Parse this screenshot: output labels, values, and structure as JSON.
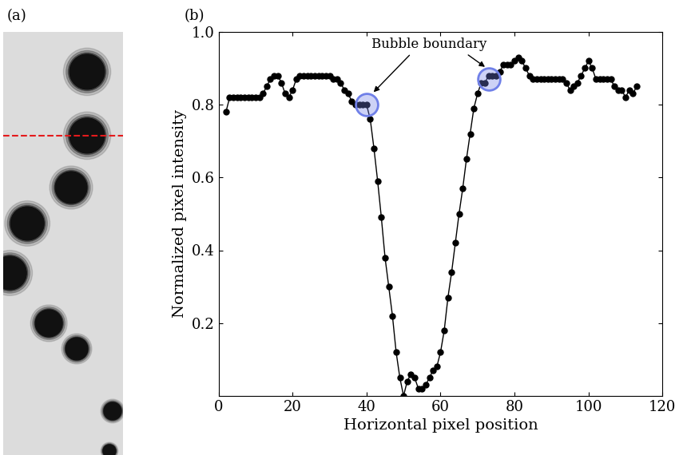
{
  "chart_data": [
    {
      "type": "image",
      "panel_label": "(a)",
      "line_color": "#e41a1c",
      "line_style": "dashed"
    },
    {
      "type": "line",
      "panel_label": "(b)",
      "x_label": "Horizontal pixel position",
      "y_label": "Normalized pixel intensity",
      "x": [
        2,
        3,
        4,
        5,
        6,
        7,
        8,
        9,
        10,
        11,
        12,
        13,
        14,
        15,
        16,
        17,
        18,
        19,
        20,
        21,
        22,
        23,
        24,
        25,
        26,
        27,
        28,
        29,
        30,
        31,
        32,
        33,
        34,
        35,
        36,
        37,
        38,
        39,
        40,
        41,
        42,
        43,
        44,
        45,
        46,
        47,
        48,
        49,
        50,
        51,
        52,
        53,
        54,
        55,
        56,
        57,
        58,
        59,
        60,
        61,
        62,
        63,
        64,
        65,
        66,
        67,
        68,
        69,
        70,
        71,
        72,
        73,
        74,
        75,
        76,
        77,
        78,
        79,
        80,
        81,
        82,
        83,
        84,
        85,
        86,
        87,
        88,
        89,
        90,
        91,
        92,
        93,
        94,
        95,
        96,
        97,
        98,
        99,
        100,
        101,
        102,
        103,
        104,
        105,
        106,
        107,
        108,
        109,
        110,
        111,
        112,
        113
      ],
      "values": [
        0.78,
        0.82,
        0.82,
        0.82,
        0.82,
        0.82,
        0.82,
        0.82,
        0.82,
        0.82,
        0.83,
        0.85,
        0.87,
        0.88,
        0.88,
        0.86,
        0.83,
        0.82,
        0.84,
        0.87,
        0.88,
        0.88,
        0.88,
        0.88,
        0.88,
        0.88,
        0.88,
        0.88,
        0.88,
        0.87,
        0.87,
        0.86,
        0.84,
        0.83,
        0.81,
        0.8,
        0.8,
        0.8,
        0.8,
        0.76,
        0.68,
        0.59,
        0.49,
        0.38,
        0.3,
        0.22,
        0.12,
        0.05,
        0.0,
        0.04,
        0.06,
        0.05,
        0.02,
        0.02,
        0.03,
        0.05,
        0.07,
        0.08,
        0.12,
        0.18,
        0.27,
        0.34,
        0.42,
        0.5,
        0.57,
        0.65,
        0.72,
        0.79,
        0.83,
        0.86,
        0.86,
        0.88,
        0.88,
        0.88,
        0.89,
        0.91,
        0.91,
        0.91,
        0.92,
        0.93,
        0.92,
        0.9,
        0.88,
        0.87,
        0.87,
        0.87,
        0.87,
        0.87,
        0.87,
        0.87,
        0.87,
        0.87,
        0.86,
        0.84,
        0.85,
        0.86,
        0.88,
        0.9,
        0.92,
        0.9,
        0.87,
        0.87,
        0.87,
        0.87,
        0.87,
        0.85,
        0.84,
        0.84,
        0.82,
        0.84,
        0.83,
        0.85
      ],
      "color": "#000000",
      "marker": "o",
      "line_style": "solid",
      "xlim": [
        0,
        120
      ],
      "xticks": [
        0,
        20,
        40,
        60,
        80,
        100,
        120
      ],
      "ylim": [
        0,
        1.0
      ],
      "yticks": [
        0.2,
        0.4,
        0.6,
        0.8,
        {
          "value": 1.0,
          "label": "1.0"
        }
      ],
      "annotation": {
        "text": "Bubble boundary",
        "color": "#7080e8",
        "x": [
          40,
          73
        ],
        "y": [
          0.8,
          0.87
        ]
      }
    }
  ]
}
